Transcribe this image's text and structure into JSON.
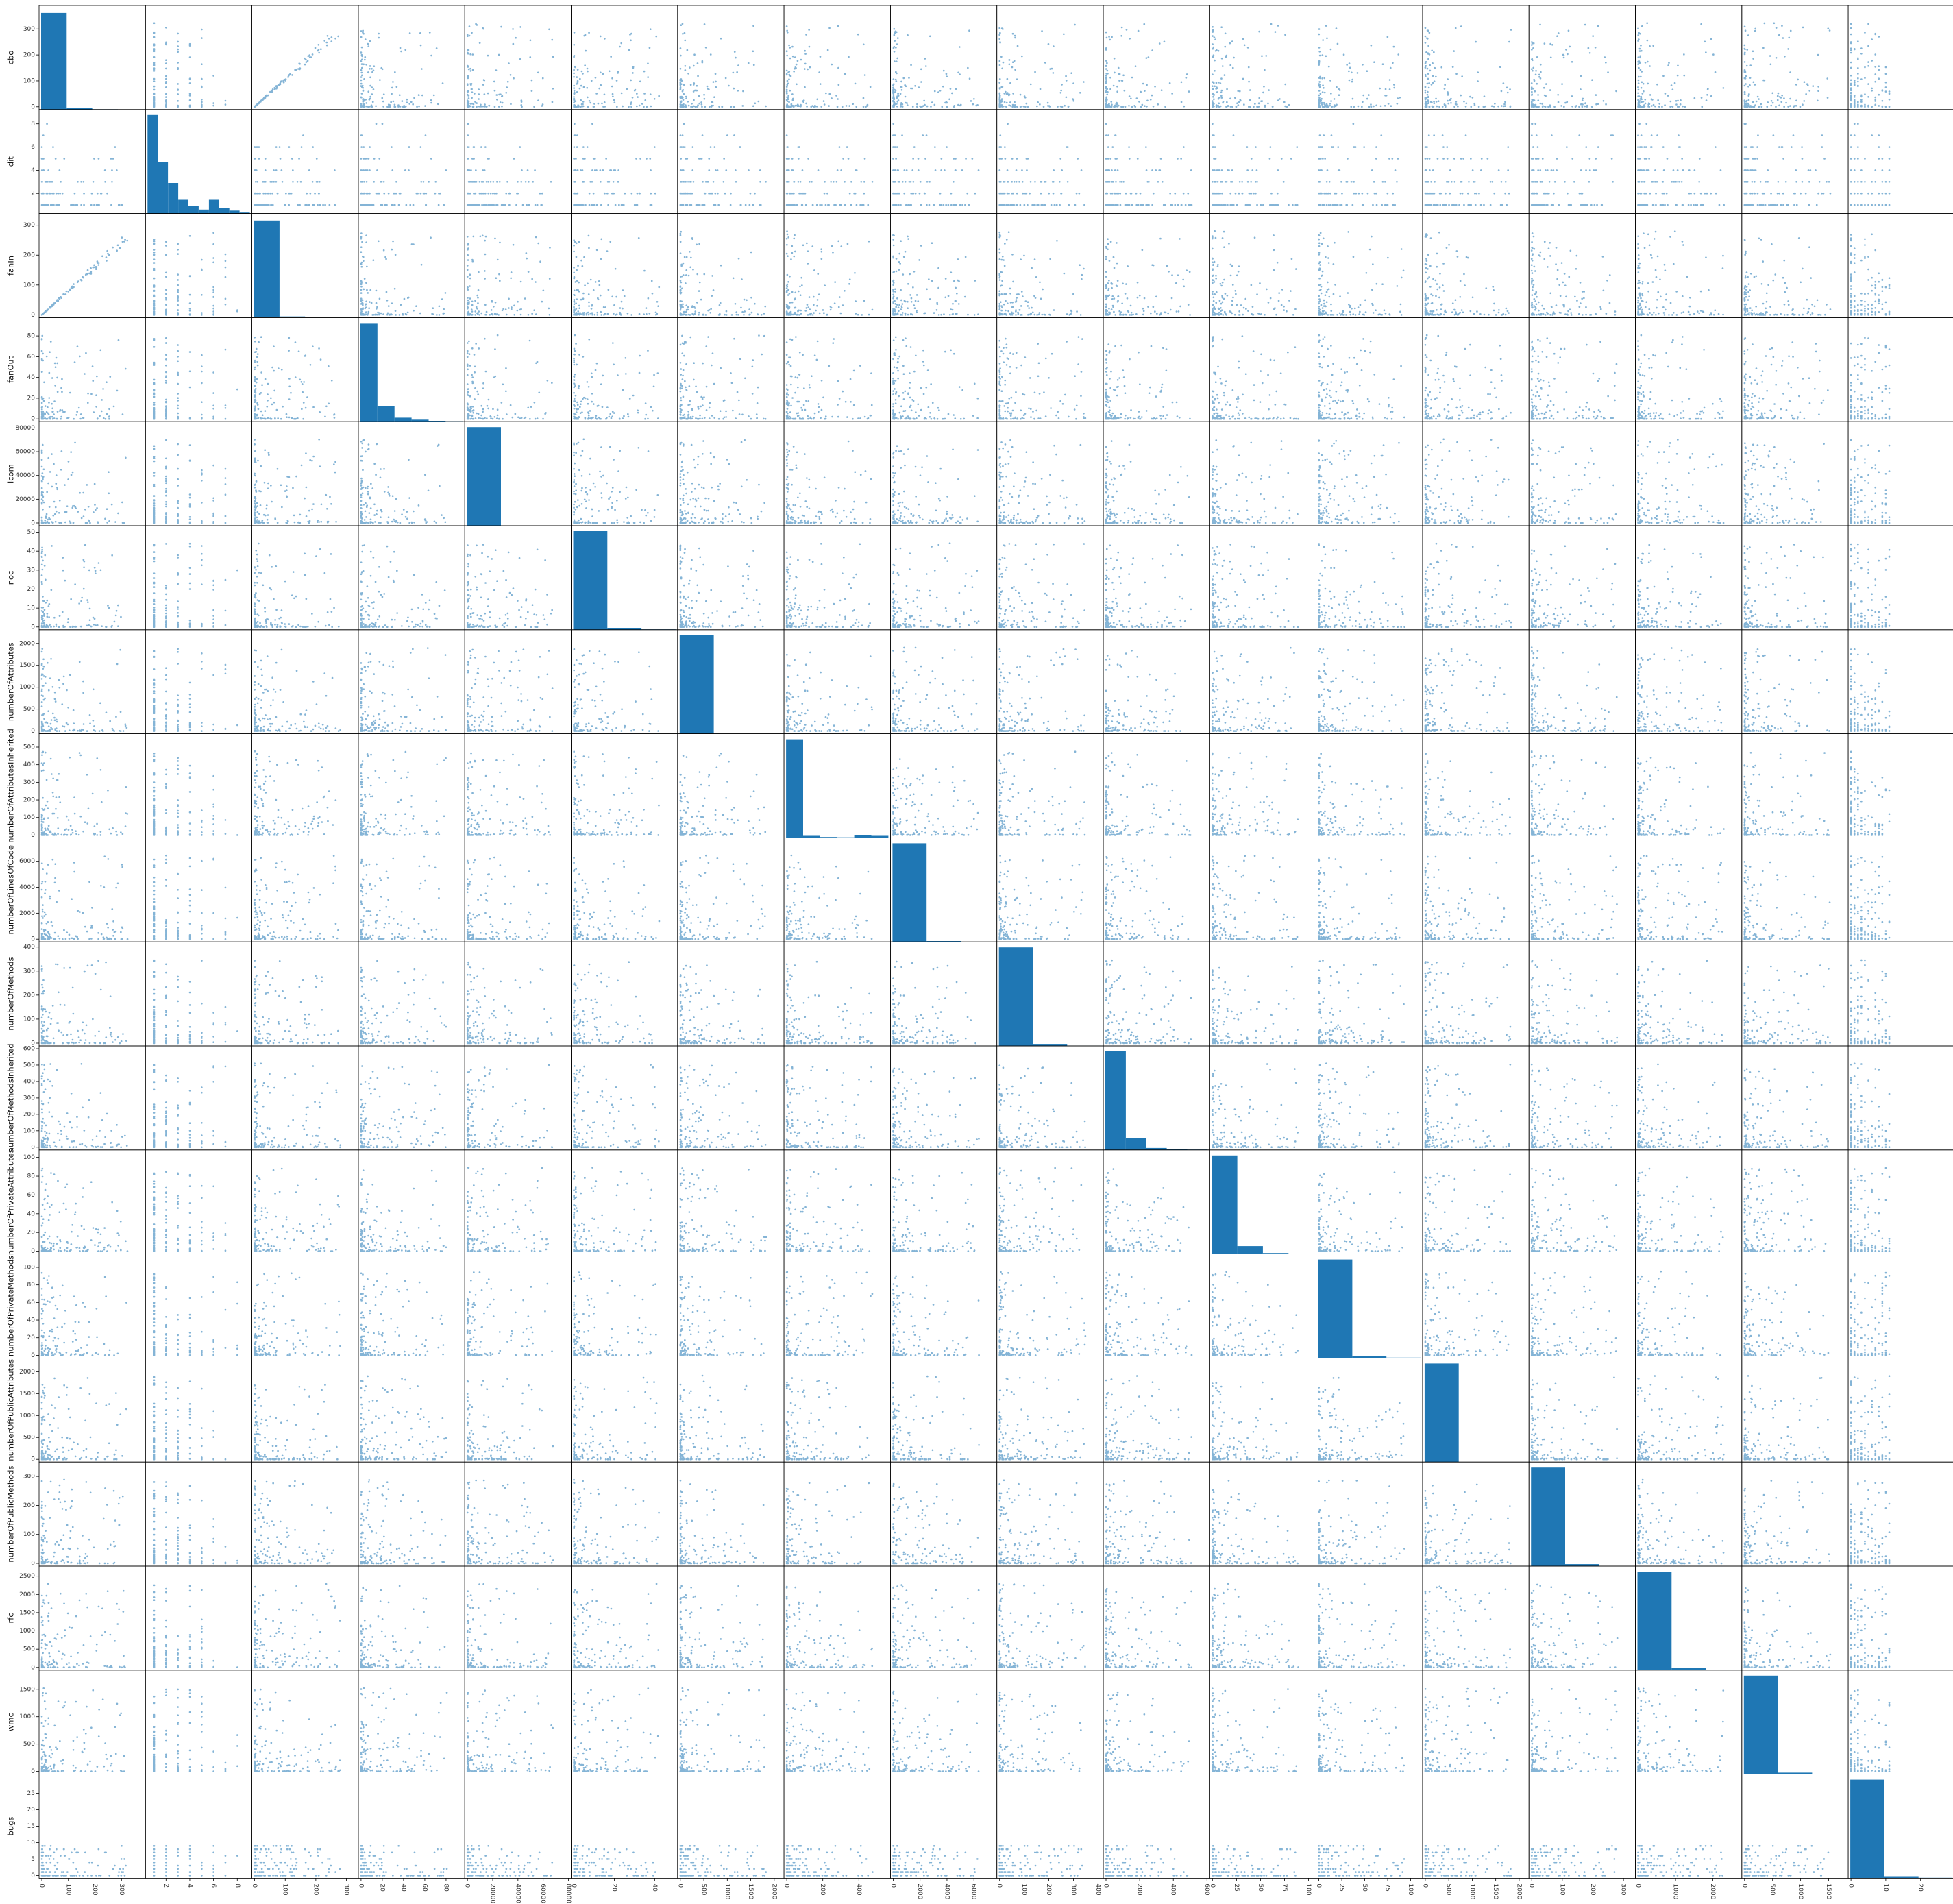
{
  "chart_data": {
    "type": "scatter_matrix",
    "diagonal": "histogram",
    "colors": {
      "marker": "#1f77b4",
      "hist": "#1f77b4"
    },
    "variables": [
      {
        "name": "cbo",
        "range": [
          0,
          380
        ],
        "ticks": [
          0,
          100,
          200,
          300
        ],
        "yticks": [
          0,
          100,
          200,
          300
        ],
        "ylim": [
          0,
          380
        ],
        "hist": [
          0.98,
          0.016,
          0.003,
          0.001
        ]
      },
      {
        "name": "dit",
        "range": [
          0.5,
          9
        ],
        "ticks": [
          2,
          4,
          6,
          8
        ],
        "yticks": [
          2,
          4,
          6,
          8
        ],
        "ylim": [
          0.5,
          9
        ],
        "hist": [
          1.0,
          0.52,
          0.31,
          0.14,
          0.08,
          0.04,
          0.14,
          0.06,
          0.03,
          0.01
        ]
      },
      {
        "name": "fanIn",
        "range": [
          0,
          330
        ],
        "ticks": [
          0,
          100,
          200,
          300
        ],
        "yticks": [
          0,
          100,
          200,
          300
        ],
        "ylim": [
          0,
          330
        ],
        "hist": [
          0.985,
          0.012,
          0.002,
          0.001
        ]
      },
      {
        "name": "fanOut",
        "range": [
          0,
          95
        ],
        "ticks": [
          0,
          20,
          40,
          60,
          80
        ],
        "yticks": [
          0,
          20,
          40,
          60,
          80
        ],
        "ylim": [
          0,
          95
        ],
        "hist": [
          1.0,
          0.16,
          0.04,
          0.02,
          0.008,
          0.004
        ]
      },
      {
        "name": "lcom",
        "range": [
          0,
          80000
        ],
        "ticks": [
          0,
          20000,
          40000,
          60000,
          80000
        ],
        "yticks": [
          0,
          20000,
          40000,
          60000,
          80000
        ],
        "ylim": [
          0,
          83000
        ],
        "hist": [
          1.0,
          0.002
        ]
      },
      {
        "name": "noc",
        "range": [
          0,
          50
        ],
        "ticks": [
          0,
          20,
          40
        ],
        "yticks": [
          0,
          10,
          20,
          30,
          40,
          50
        ],
        "ylim": [
          0,
          52
        ],
        "hist": [
          1.0,
          0.015,
          0.004
        ]
      },
      {
        "name": "numberOfAttributes",
        "range": [
          0,
          2150
        ],
        "ticks": [
          0,
          500,
          1000,
          1500,
          2000
        ],
        "yticks": [
          0,
          500,
          1000,
          1500,
          2000
        ],
        "ylim": [
          0,
          2250
        ],
        "hist": [
          1.0
        ]
      },
      {
        "name": "numberOfAttributesInherited",
        "range": [
          0,
          560
        ],
        "ticks": [
          0,
          200,
          400
        ],
        "yticks": [
          0,
          100,
          200,
          300,
          400,
          500
        ],
        "ylim": [
          0,
          560
        ],
        "hist": [
          1.0,
          0.02,
          0.008,
          0.005,
          0.03,
          0.02
        ]
      },
      {
        "name": "numberOfLinesOfCode",
        "range": [
          0,
          7500
        ],
        "ticks": [
          0,
          2000,
          4000,
          6000
        ],
        "yticks": [
          0,
          2000,
          4000,
          6000
        ],
        "ylim": [
          0,
          7600
        ],
        "hist": [
          1.0,
          0.008,
          0.002
        ]
      },
      {
        "name": "numberOfMethods",
        "range": [
          0,
          410
        ],
        "ticks": [
          0,
          100,
          200,
          300,
          400
        ],
        "yticks": [
          0,
          100,
          200,
          300,
          400
        ],
        "ylim": [
          0,
          410
        ],
        "hist": [
          1.0,
          0.02,
          0.003
        ]
      },
      {
        "name": "numberOfMethodsInherited",
        "range": [
          0,
          600
        ],
        "ticks": [
          0,
          200,
          400,
          600
        ],
        "yticks": [
          0,
          100,
          200,
          300,
          400,
          500,
          600
        ],
        "ylim": [
          0,
          600
        ],
        "hist": [
          1.0,
          0.12,
          0.02,
          0.01,
          0.004
        ]
      },
      {
        "name": "numberOfPrivateAttributes",
        "range": [
          0,
          105
        ],
        "ticks": [
          0,
          25,
          50,
          75,
          100
        ],
        "yticks": [
          0,
          20,
          40,
          60,
          80,
          100
        ],
        "ylim": [
          0,
          105
        ],
        "hist": [
          1.0,
          0.08,
          0.01,
          0.003
        ]
      },
      {
        "name": "numberOfPrivateMethods",
        "range": [
          0,
          110
        ],
        "ticks": [
          0,
          25,
          50,
          75,
          100
        ],
        "yticks": [
          0,
          20,
          40,
          60,
          80,
          100
        ],
        "ylim": [
          0,
          112
        ],
        "hist": [
          1.0,
          0.02,
          0.004
        ]
      },
      {
        "name": "numberOfPublicAttributes",
        "range": [
          0,
          2150
        ],
        "ticks": [
          0,
          500,
          1000,
          1500,
          2000
        ],
        "yticks": [
          0,
          500,
          1000,
          1500,
          2000
        ],
        "ylim": [
          0,
          2250
        ],
        "hist": [
          1.0
        ]
      },
      {
        "name": "numberOfPublicMethods",
        "range": [
          0,
          330
        ],
        "ticks": [
          0,
          100,
          200,
          300
        ],
        "yticks": [
          0,
          100,
          200,
          300
        ],
        "ylim": [
          0,
          340
        ],
        "hist": [
          1.0,
          0.02
        ]
      },
      {
        "name": "rfc",
        "range": [
          0,
          2700
        ],
        "ticks": [
          0,
          1000,
          2000
        ],
        "yticks": [
          0,
          500,
          1000,
          1500,
          2000,
          2500
        ],
        "ylim": [
          0,
          2700
        ],
        "hist": [
          1.0,
          0.02,
          0.004
        ]
      },
      {
        "name": "wmc",
        "range": [
          0,
          1800
        ],
        "ticks": [
          0,
          500,
          1000,
          1500
        ],
        "yticks": [
          0,
          500,
          1000,
          1500
        ],
        "ylim": [
          0,
          1800
        ],
        "hist": [
          1.0,
          0.015,
          0.004
        ]
      },
      {
        "name": "bugs",
        "range": [
          0,
          29
        ],
        "ticks": [
          0,
          10,
          20
        ],
        "yticks": [
          0,
          5,
          10,
          15,
          20,
          25
        ],
        "ylim": [
          0,
          30
        ],
        "hist": [
          1.0,
          0.02,
          0.004
        ]
      }
    ]
  }
}
